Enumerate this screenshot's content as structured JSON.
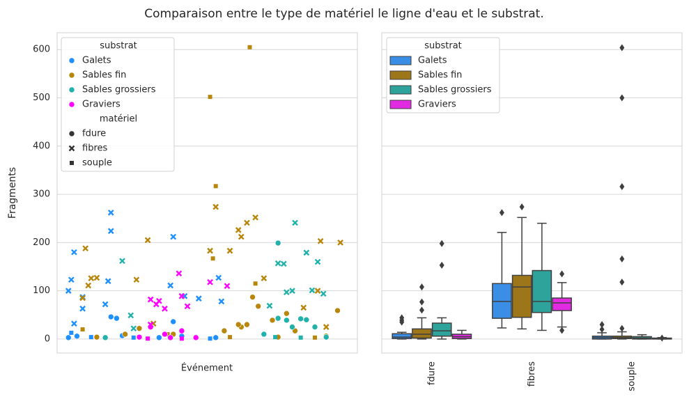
{
  "title": "Comparaison entre le type de matériel le ligne d'eau et le substrat.",
  "chart_data": [
    {
      "type": "scatter",
      "xlabel": "Événement",
      "ylabel": "Fragments",
      "xlim": [
        -2,
        104
      ],
      "ylim": [
        -29,
        635
      ],
      "yticks": [
        0,
        100,
        200,
        300,
        400,
        500,
        600
      ],
      "grid": true,
      "legend": {
        "hue_title": "substrat",
        "style_title": "matériel",
        "styles": [
          {
            "name": "fdure",
            "marker": "circle"
          },
          {
            "name": "fibres",
            "marker": "x"
          },
          {
            "name": "souple",
            "marker": "square"
          }
        ],
        "hues": [
          {
            "name": "Galets",
            "color": "#1e90ff",
            "points": [
              {
                "x": [
                  17,
                  19,
                  39,
                  5,
                  12,
                  27,
                  34,
                  47,
                  54,
                  2,
                  21,
                  42
                ],
                "values": [
                  46,
                  43,
                  36,
                  6,
                  4,
                  4,
                  3,
                  4,
                  3,
                  3,
                  7,
                  6
                ]
              },
              {
                "x": [
                  2,
                  3,
                  4,
                  7,
                  7,
                  17,
                  17,
                  15,
                  16,
                  39,
                  38,
                  43,
                  55,
                  56,
                  48,
                  4
                ],
                "values": [
                  100,
                  123,
                  180,
                  63,
                  87,
                  262,
                  224,
                  72,
                  120,
                  212,
                  111,
                  89,
                  127,
                  78,
                  84,
                  32
                ]
              },
              {
                "x": [
                  3,
                  10,
                  25,
                  52
                ],
                "values": [
                  13,
                  4,
                  3,
                  1
                ]
              }
            ]
          },
          {
            "name": "Sables fin",
            "color": "#b8860b",
            "points": [
              {
                "x": [
                  67,
                  79,
                  69,
                  63,
                  62,
                  65,
                  74,
                  27,
                  97,
                  22,
                  39,
                  57,
                  82,
                  93,
                  12,
                  76
                ],
                "values": [
                  87,
                  53,
                  68,
                  25,
                  30,
                  30,
                  39,
                  22,
                  59,
                  10,
                  10,
                  17,
                  17,
                  6,
                  4,
                  4
                ]
              },
              {
                "x": [
                  8,
                  10,
                  12,
                  9,
                  7,
                  30,
                  54,
                  52,
                  62,
                  63,
                  68,
                  65,
                  59,
                  91,
                  98,
                  71,
                  85,
                  90,
                  93,
                  32,
                  26
                ],
                "values": [
                  188,
                  126,
                  127,
                  111,
                  85,
                  205,
                  274,
                  183,
                  226,
                  212,
                  252,
                  241,
                  183,
                  203,
                  200,
                  126,
                  65,
                  100,
                  25,
                  32,
                  123
                ]
              },
              {
                "x": [
                  52,
                  66,
                  54,
                  53,
                  68,
                  7,
                  37,
                  59,
                  89
                ],
                "values": [
                  502,
                  605,
                  317,
                  167,
                  115,
                  20,
                  10,
                  4,
                  3
                ]
              }
            ]
          },
          {
            "name": "Sables grossiers",
            "color": "#20b2aa",
            "points": [
              {
                "x": [
                  76,
                  76,
                  79,
                  84,
                  86,
                  81,
                  89,
                  15,
                  71,
                  93
                ],
                "values": [
                  199,
                  43,
                  39,
                  42,
                  40,
                  25,
                  25,
                  3,
                  10,
                  4
                ]
              },
              {
                "x": [
                  21,
                  24,
                  82,
                  86,
                  90,
                  76,
                  78,
                  79,
                  81,
                  88,
                  92,
                  73,
                  25
                ],
                "values": [
                  162,
                  49,
                  241,
                  179,
                  160,
                  157,
                  156,
                  97,
                  100,
                  101,
                  94,
                  69,
                  22
                ]
              },
              {
                "x": [
                  75,
                  84
                ],
                "values": [
                  4,
                  3
                ]
              }
            ]
          },
          {
            "name": "Graviers",
            "color": "#ff00ff",
            "points": [
              {
                "x": [
                  42,
                  36,
                  27,
                  47,
                  31,
                  38
                ],
                "values": [
                  17,
                  10,
                  4,
                  3,
                  25,
                  3
                ]
              },
              {
                "x": [
                  41,
                  31,
                  33,
                  36,
                  42,
                  52,
                  58,
                  31,
                  44,
                  34
                ],
                "values": [
                  136,
                  82,
                  72,
                  63,
                  89,
                  118,
                  110,
                  30,
                  68,
                  79
                ]
              },
              {
                "x": [
                  30,
                  42
                ],
                "values": [
                  1,
                  1
                ]
              }
            ]
          }
        ]
      }
    },
    {
      "type": "box",
      "categories": [
        "fdure",
        "fibres",
        "souple"
      ],
      "ylim": [
        -29,
        635
      ],
      "yticks": [
        0,
        100,
        200,
        300,
        400,
        500,
        600
      ],
      "grid": true,
      "legend_title": "substrat",
      "series": [
        {
          "name": "Galets",
          "color": "#3a8ee6",
          "boxes": [
            {
              "whislo": 0,
              "q1": 1,
              "med": 4,
              "q3": 11,
              "whishi": 14,
              "fliers": [
                35,
                39,
                44
              ]
            },
            {
              "whislo": 23,
              "q1": 43,
              "med": 78,
              "q3": 115,
              "whishi": 221,
              "fliers": [
                262
              ]
            },
            {
              "whislo": 0,
              "q1": 0,
              "med": 3,
              "q3": 6,
              "whishi": 13,
              "fliers": [
                20,
                30
              ]
            }
          ]
        },
        {
          "name": "Sables fin",
          "color": "#9c7619",
          "boxes": [
            {
              "whislo": 0,
              "q1": 2,
              "med": 10,
              "q3": 21,
              "whishi": 44,
              "fliers": [
                60,
                77,
                108
              ]
            },
            {
              "whislo": 21,
              "q1": 45,
              "med": 108,
              "q3": 132,
              "whishi": 252,
              "fliers": [
                274
              ]
            },
            {
              "whislo": 0,
              "q1": 1,
              "med": 3,
              "q3": 6,
              "whishi": 15,
              "fliers": [
                22,
                118,
                166,
                316,
                500,
                604
              ]
            }
          ]
        },
        {
          "name": "Sables grossiers",
          "color": "#2ea39b",
          "boxes": [
            {
              "whislo": 0,
              "q1": 6,
              "med": 17,
              "q3": 33,
              "whishi": 44,
              "fliers": [
                153,
                198
              ]
            },
            {
              "whislo": 18,
              "q1": 55,
              "med": 78,
              "q3": 142,
              "whishi": 240,
              "fliers": []
            },
            {
              "whislo": 0,
              "q1": 0,
              "med": 2,
              "q3": 5,
              "whishi": 9,
              "fliers": []
            }
          ]
        },
        {
          "name": "Graviers",
          "color": "#e22ae2",
          "boxes": [
            {
              "whislo": 0,
              "q1": 1,
              "med": 5,
              "q3": 10,
              "whishi": 18,
              "fliers": []
            },
            {
              "whislo": 25,
              "q1": 59,
              "med": 75,
              "q3": 85,
              "whishi": 117,
              "fliers": [
                135,
                18
              ]
            },
            {
              "whislo": 0,
              "q1": 0,
              "med": 1,
              "q3": 2,
              "whishi": 3,
              "fliers": [
                2
              ]
            }
          ]
        }
      ]
    }
  ]
}
